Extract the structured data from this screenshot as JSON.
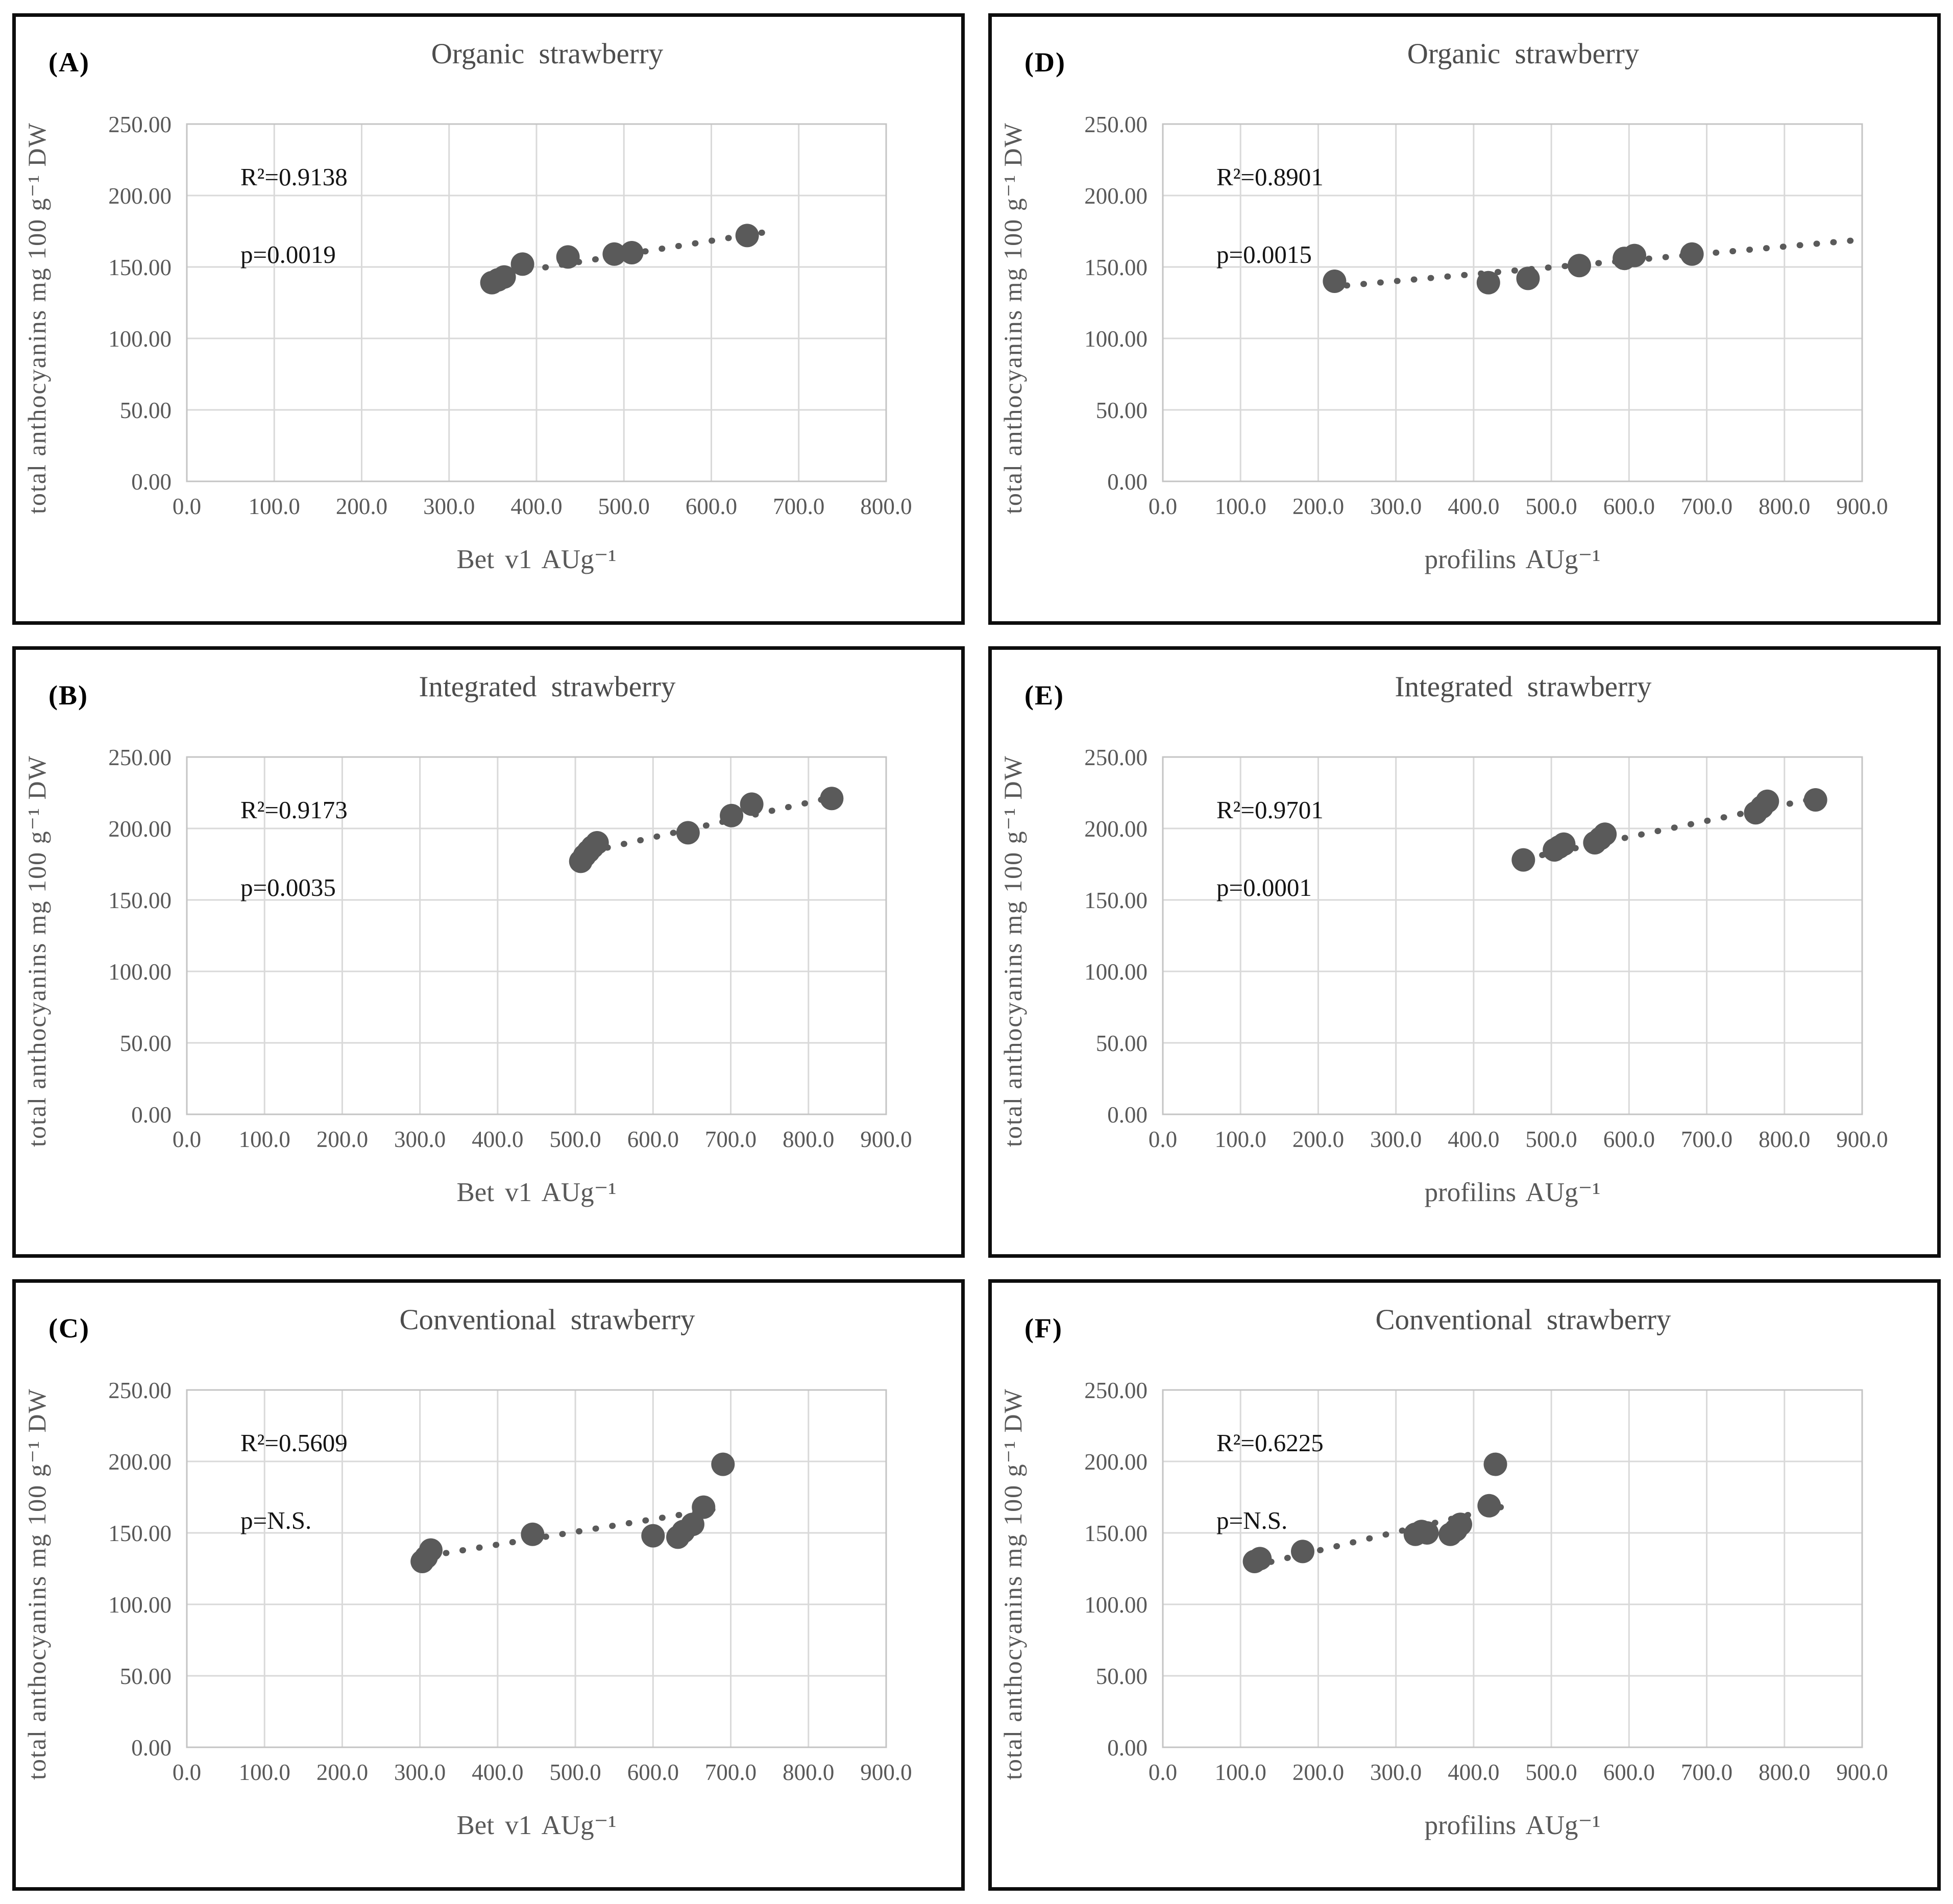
{
  "figure": {
    "background": "#ffffff",
    "panel_border_color": "#0d0d0d",
    "grid_color": "#d9d9d9",
    "frame_color": "#c4c4c4",
    "axis_text_color": "#595959",
    "title_color": "#4d4d4d",
    "point_color": "#5a5a5a",
    "stat_text_color": "#141414"
  },
  "shared": {
    "ylim": [
      0,
      250
    ],
    "ystep": 50,
    "y_tick_decimals": 2,
    "x_tick_decimals": 1,
    "grid": true,
    "legend": "none",
    "marker": "filled-circle",
    "trendline_style": "dotted"
  },
  "chart_data": [
    {
      "type": "scatter",
      "panel_label": "(A)",
      "title": "Organic strawberry",
      "x_label": "Bet v1 AUg⁻¹",
      "y_label": "total anthocyanins mg 100 g⁻¹ DW",
      "r2": "R²=0.9138",
      "p": "p=0.0019",
      "xlim": [
        0,
        800
      ],
      "xstep": 100,
      "points": [
        [
          349,
          139
        ],
        [
          356,
          141
        ],
        [
          363,
          143
        ],
        [
          384,
          152
        ],
        [
          436,
          157
        ],
        [
          489,
          159
        ],
        [
          509,
          160
        ],
        [
          641,
          172
        ]
      ],
      "trend": {
        "x1": 372,
        "y1": 146,
        "x2": 658,
        "y2": 174
      }
    },
    {
      "type": "scatter",
      "panel_label": "(D)",
      "title": "Organic strawberry",
      "x_label": "profilins AUg⁻¹",
      "y_label": "total anthocyanins mg 100 g⁻¹ DW",
      "r2": "R²=0.8901",
      "p": "p=0.0015",
      "xlim": [
        0,
        900
      ],
      "xstep": 100,
      "points": [
        [
          221,
          140
        ],
        [
          419,
          139
        ],
        [
          470,
          142
        ],
        [
          536,
          151
        ],
        [
          594,
          156
        ],
        [
          607,
          158
        ],
        [
          681,
          159
        ]
      ],
      "trend": {
        "x1": 215,
        "y1": 136,
        "x2": 898,
        "y2": 169
      }
    },
    {
      "type": "scatter",
      "panel_label": "(B)",
      "title": "Integrated strawberry",
      "x_label": "Bet v1 AUg⁻¹",
      "y_label": "total anthocyanins mg 100 g⁻¹ DW",
      "r2": "R²=0.9173",
      "p": "p=0.0035",
      "xlim": [
        0,
        900
      ],
      "xstep": 100,
      "points": [
        [
          507,
          177
        ],
        [
          512,
          181
        ],
        [
          517,
          184
        ],
        [
          522,
          187
        ],
        [
          528,
          190
        ],
        [
          645,
          197
        ],
        [
          701,
          209
        ],
        [
          727,
          217
        ],
        [
          830,
          221
        ]
      ],
      "trend": {
        "x1": 520,
        "y1": 184,
        "x2": 840,
        "y2": 223
      }
    },
    {
      "type": "scatter",
      "panel_label": "(E)",
      "title": "Integrated strawberry",
      "x_label": "profilins AUg⁻¹",
      "y_label": "total anthocyanins mg 100 g⁻¹ DW",
      "r2": "R²=0.9701",
      "p": "p=0.0001",
      "xlim": [
        0,
        900
      ],
      "xstep": 100,
      "points": [
        [
          464,
          178
        ],
        [
          504,
          185
        ],
        [
          510,
          187
        ],
        [
          516,
          189
        ],
        [
          556,
          190
        ],
        [
          563,
          193
        ],
        [
          569,
          196
        ],
        [
          763,
          211
        ],
        [
          771,
          215
        ],
        [
          778,
          219
        ],
        [
          840,
          220
        ]
      ],
      "trend": {
        "x1": 467,
        "y1": 179,
        "x2": 848,
        "y2": 222
      }
    },
    {
      "type": "scatter",
      "panel_label": "(C)",
      "title": "Conventional strawberry",
      "x_label": "Bet v1 AUg⁻¹",
      "y_label": "total anthocyanins mg 100 g⁻¹ DW",
      "r2": "R²=0.5609",
      "p": "p=N.S.",
      "xlim": [
        0,
        900
      ],
      "xstep": 100,
      "points": [
        [
          303,
          130
        ],
        [
          308,
          133
        ],
        [
          314,
          138
        ],
        [
          445,
          149
        ],
        [
          600,
          148
        ],
        [
          632,
          147
        ],
        [
          639,
          151
        ],
        [
          651,
          156
        ],
        [
          665,
          168
        ],
        [
          690,
          198
        ]
      ],
      "trend": {
        "x1": 312,
        "y1": 134,
        "x2": 684,
        "y2": 167
      }
    },
    {
      "type": "scatter",
      "panel_label": "(F)",
      "title": "Conventional strawberry",
      "x_label": "profilins AUg⁻¹",
      "y_label": "total anthocyanins mg 100 g⁻¹ DW",
      "r2": "R²=0.6225",
      "p": "p=N.S.",
      "xlim": [
        0,
        900
      ],
      "xstep": 100,
      "points": [
        [
          118,
          130
        ],
        [
          125,
          132
        ],
        [
          180,
          137
        ],
        [
          325,
          149
        ],
        [
          333,
          151
        ],
        [
          340,
          150
        ],
        [
          370,
          149
        ],
        [
          377,
          152
        ],
        [
          383,
          156
        ],
        [
          420,
          169
        ],
        [
          428,
          198
        ]
      ],
      "trend": {
        "x1": 118,
        "y1": 127,
        "x2": 435,
        "y2": 168
      }
    }
  ]
}
